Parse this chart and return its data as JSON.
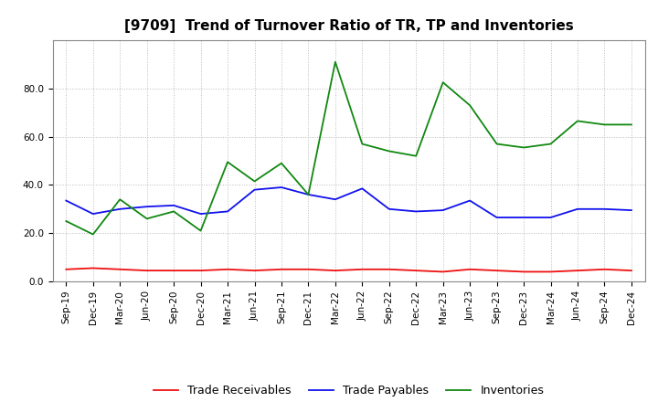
{
  "title": "[9709]  Trend of Turnover Ratio of TR, TP and Inventories",
  "x_labels": [
    "Sep-19",
    "Dec-19",
    "Mar-20",
    "Jun-20",
    "Sep-20",
    "Dec-20",
    "Mar-21",
    "Jun-21",
    "Sep-21",
    "Dec-21",
    "Mar-22",
    "Jun-22",
    "Sep-22",
    "Dec-22",
    "Mar-23",
    "Jun-23",
    "Sep-23",
    "Dec-23",
    "Mar-24",
    "Jun-24",
    "Sep-24",
    "Dec-24"
  ],
  "trade_receivables": [
    5.0,
    5.5,
    5.0,
    4.5,
    4.5,
    4.5,
    5.0,
    4.5,
    5.0,
    5.0,
    4.5,
    5.0,
    5.0,
    4.5,
    4.0,
    5.0,
    4.5,
    4.0,
    4.0,
    4.5,
    5.0,
    4.5
  ],
  "trade_payables": [
    33.5,
    28.0,
    30.0,
    31.0,
    31.5,
    28.0,
    29.0,
    38.0,
    39.0,
    36.0,
    34.0,
    38.5,
    30.0,
    29.0,
    29.5,
    33.5,
    26.5,
    26.5,
    26.5,
    30.0,
    30.0,
    29.5
  ],
  "inventories": [
    25.0,
    19.5,
    34.0,
    26.0,
    29.0,
    21.0,
    49.5,
    41.5,
    49.0,
    36.0,
    91.0,
    57.0,
    54.0,
    52.0,
    82.5,
    73.0,
    57.0,
    55.5,
    57.0,
    66.5,
    65.0,
    65.0
  ],
  "colors": {
    "trade_receivables": "#EE1111",
    "trade_payables": "#1111EE",
    "inventories": "#118811"
  },
  "ylim": [
    0,
    100
  ],
  "yticks": [
    0.0,
    20.0,
    40.0,
    60.0,
    80.0
  ],
  "legend_labels": [
    "Trade Receivables",
    "Trade Payables",
    "Inventories"
  ],
  "background_color": "#FFFFFF",
  "plot_bg_color": "#FFFFFF",
  "grid_color": "#BBBBBB",
  "title_fontsize": 11,
  "tick_fontsize": 7.5,
  "legend_fontsize": 9
}
